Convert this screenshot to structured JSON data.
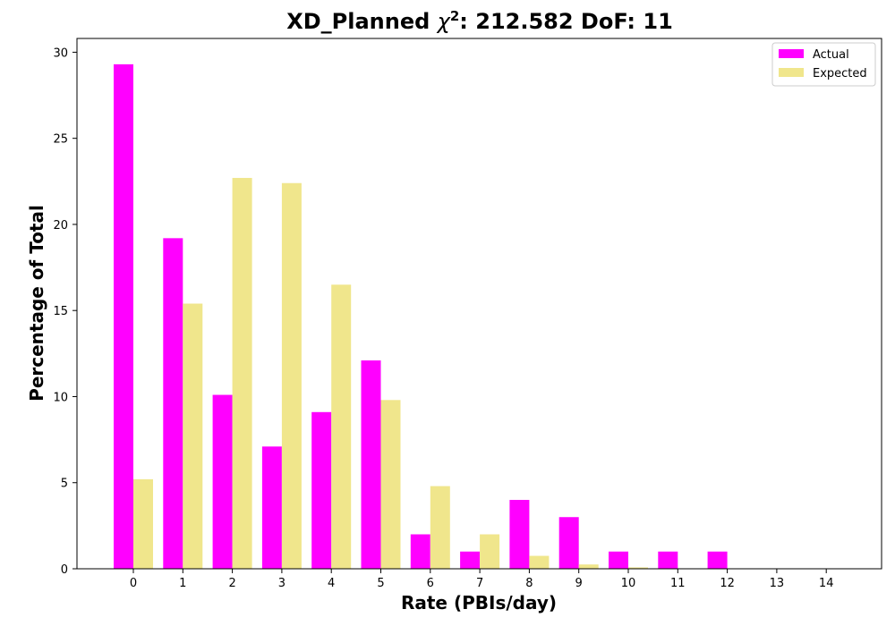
{
  "chart_data": {
    "type": "bar",
    "title": {
      "main": "XD_Planned ",
      "chi": "χ",
      "chi_sup": "2",
      "rest": ": 212.582 DoF: 11"
    },
    "xlabel": "Rate (PBIs/day)",
    "ylabel": "Percentage of Total",
    "categories": [
      "0",
      "1",
      "2",
      "3",
      "4",
      "5",
      "6",
      "7",
      "8",
      "9",
      "10",
      "11",
      "12",
      "13",
      "14"
    ],
    "series": [
      {
        "name": "Actual",
        "color": "#ff00ff",
        "values": [
          29.3,
          19.2,
          10.1,
          7.1,
          9.1,
          12.1,
          2.0,
          1.0,
          4.0,
          3.0,
          1.0,
          1.0,
          1.0,
          0,
          0
        ]
      },
      {
        "name": "Expected",
        "color": "#f0e68c",
        "values": [
          5.2,
          15.4,
          22.7,
          22.4,
          16.5,
          9.8,
          4.8,
          2.0,
          0.75,
          0.25,
          0.08,
          0.02,
          0.005,
          0.001,
          0.0002
        ]
      }
    ],
    "ylim": [
      0,
      30.8
    ],
    "yticks": [
      0,
      5,
      10,
      15,
      20,
      25,
      30
    ],
    "grid": false,
    "legend_position": "top-right"
  }
}
